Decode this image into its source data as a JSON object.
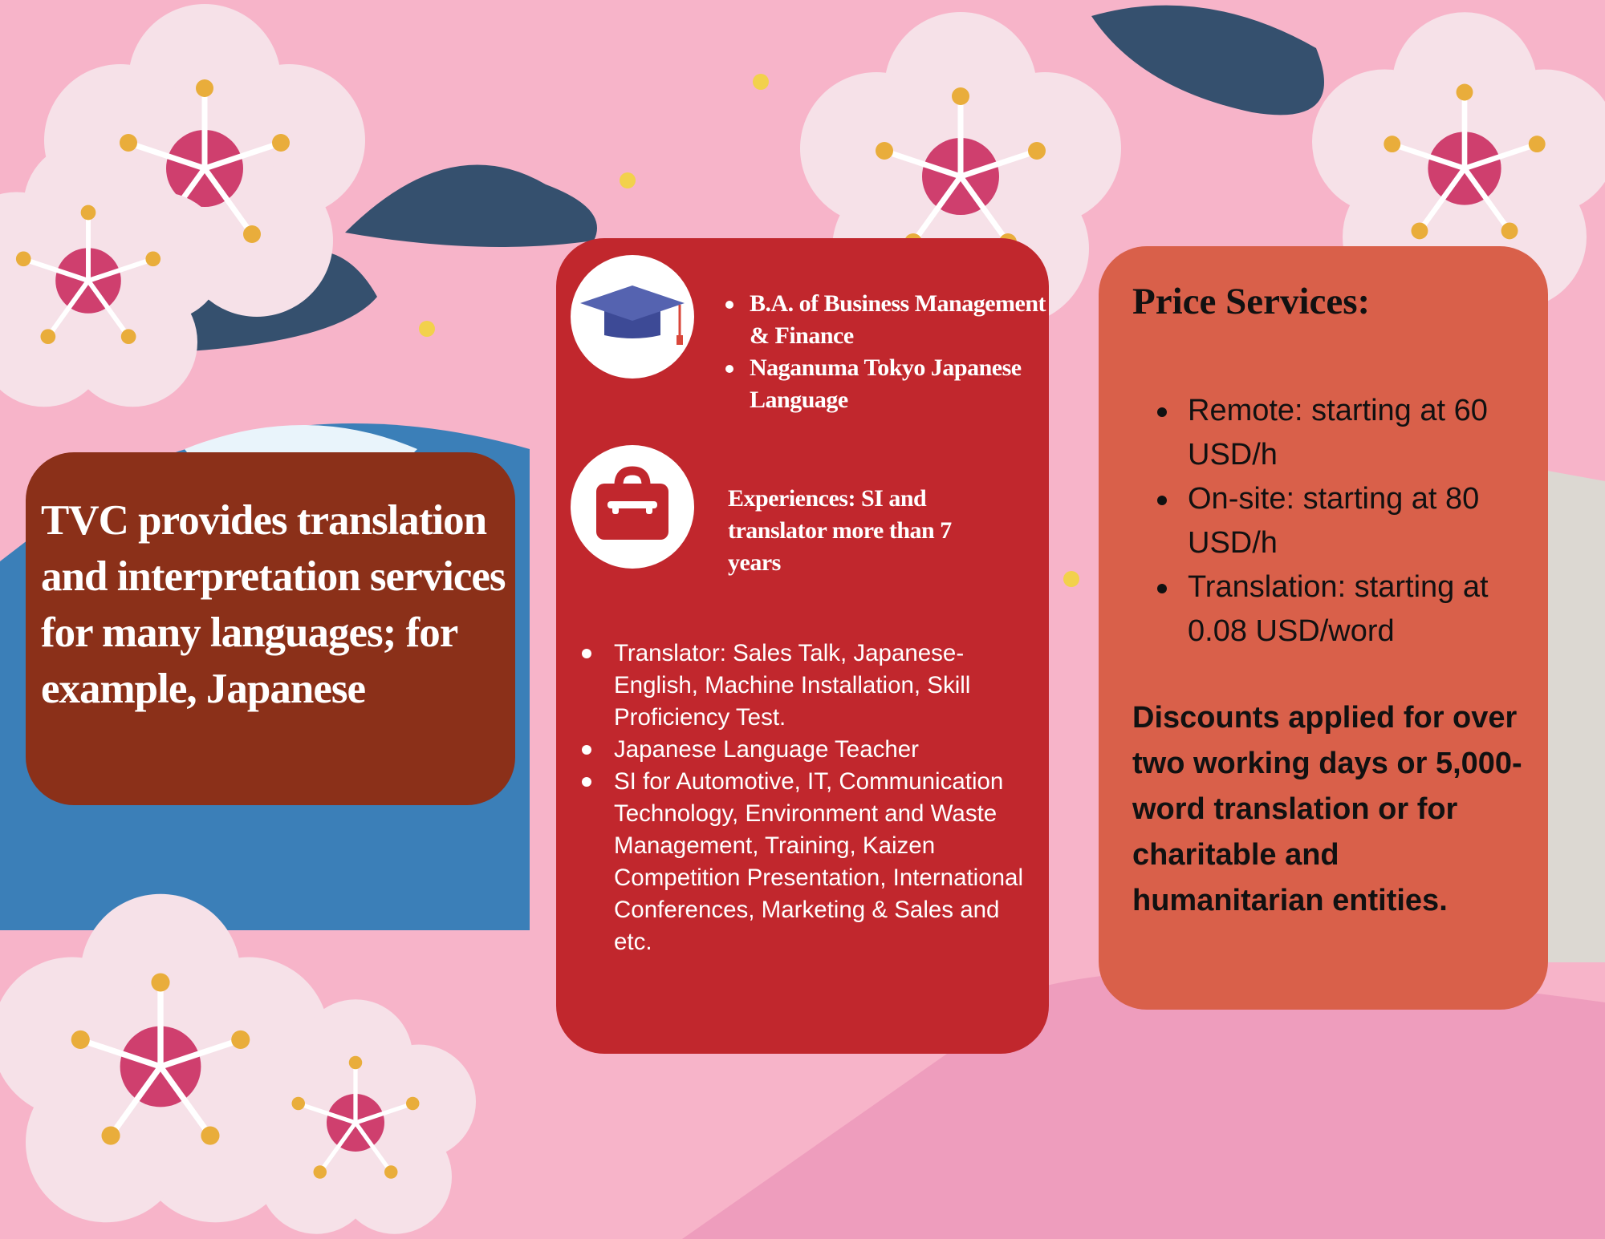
{
  "intro": "TVC provides translation and interpretation services for many languages; for example, Japanese",
  "education": {
    "icon": "graduation-cap-icon",
    "items": [
      "B.A. of Business Management & Finance",
      "Naganuma Tokyo Japanese Language"
    ]
  },
  "experience": {
    "icon": "briefcase-icon",
    "text": "Experiences: SI and translator more than 7 years"
  },
  "work_items": [
    "Translator: Sales Talk, Japanese-English, Machine Installation, Skill Proficiency Test.",
    "Japanese Language Teacher",
    "SI for Automotive, IT, Communication Technology, Environment and Waste Management, Training, Kaizen Competition Presentation, International Conferences, Marketing & Sales and etc."
  ],
  "pricing": {
    "title": "Price Services:",
    "items": [
      "Remote: starting at 60 USD/h",
      "On-site: starting at 80 USD/h",
      "Translation: starting at 0.08 USD/word"
    ],
    "discount": "Discounts applied for over two working days or 5,000-word translation or for charitable and humanitarian entities."
  },
  "colors": {
    "background": "#f7b4c9",
    "intro_box": "#8b3019",
    "middle_box": "#c1272d",
    "price_box": "#d9604a"
  }
}
